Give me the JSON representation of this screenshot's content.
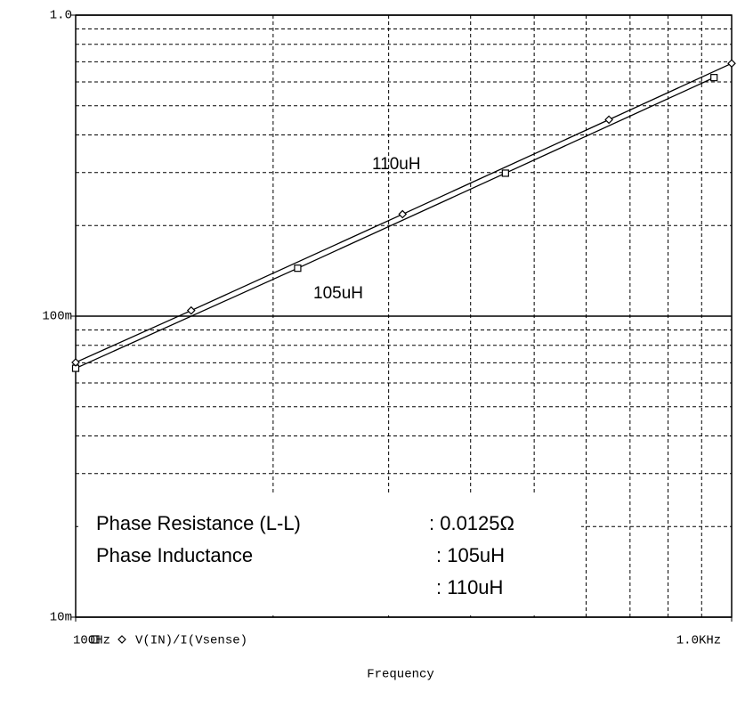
{
  "chart_data": {
    "type": "line",
    "xlabel": "Frequency",
    "legend": "V(IN)/I(Vsense)",
    "xscale": "log",
    "yscale": "log",
    "xlim": [
      100,
      1000
    ],
    "ylim": [
      0.01,
      1
    ],
    "xticks": [
      {
        "value": 100,
        "label": "100Hz"
      },
      {
        "value": 1000,
        "label": "1.0KHz"
      }
    ],
    "yticks": [
      {
        "value": 0.01,
        "label": "10m"
      },
      {
        "value": 0.1,
        "label": "100m"
      },
      {
        "value": 1,
        "label": "1.0"
      }
    ],
    "minor_xticks": [
      200,
      300,
      400,
      500,
      600,
      700,
      800,
      900
    ],
    "minor_yticks": [
      0.02,
      0.03,
      0.04,
      0.05,
      0.06,
      0.07,
      0.08,
      0.09,
      0.2,
      0.3,
      0.4,
      0.5,
      0.6,
      0.7,
      0.8,
      0.9
    ],
    "grid": true,
    "series": [
      {
        "name": "105uH",
        "color": "#000000",
        "marker": "square",
        "x": [
          100,
          218,
          452,
          940
        ],
        "values": [
          0.0671,
          0.1443,
          0.2985,
          0.6201
        ]
      },
      {
        "name": "110uH",
        "color": "#000000",
        "marker": "diamond",
        "x": [
          100,
          150,
          315,
          650,
          1000
        ],
        "values": [
          0.0702,
          0.1044,
          0.2181,
          0.4495,
          0.6912
        ]
      }
    ],
    "annotations": [
      "Phase Resistance (L-L)",
      ": 0.0125Ω",
      "Phase Inductance",
      ": 105uH",
      ": 110uH"
    ]
  }
}
